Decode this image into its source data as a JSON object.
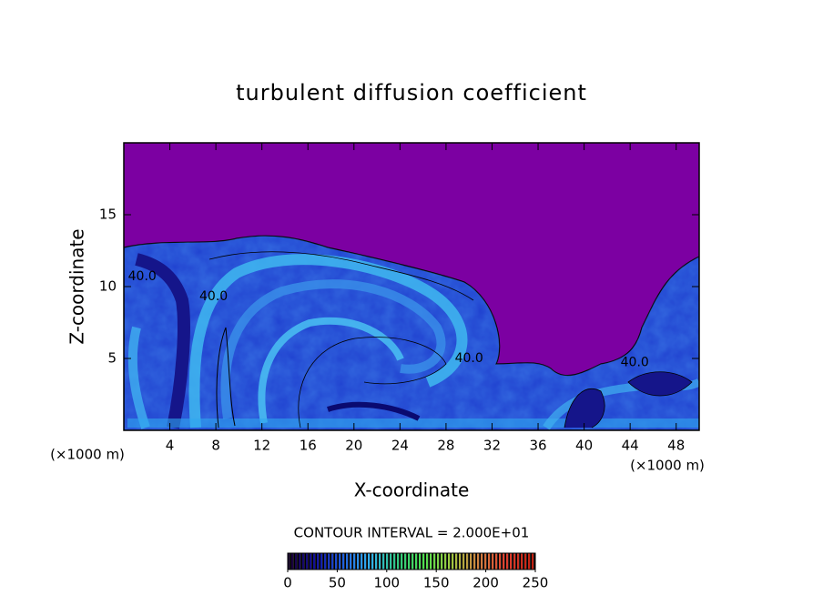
{
  "chart_data": {
    "type": "contour",
    "title": "turbulent diffusion coefficient",
    "xlabel": "X-coordinate",
    "ylabel": "Z-coordinate",
    "x_unit_label": "(×1000 m)",
    "y_unit_label": "(×1000 m)",
    "xlim": [
      0,
      50
    ],
    "xticks": [
      4,
      8,
      12,
      16,
      20,
      24,
      28,
      32,
      36,
      40,
      44,
      48
    ],
    "ylim": [
      0,
      20
    ],
    "yticks": [
      5,
      10,
      15
    ],
    "background_color": "#7c00a2",
    "contour_labels": {
      "values": [
        40,
        40,
        40,
        40
      ],
      "value_labels": [
        "40.0",
        "40.0",
        "40.0",
        "40.0"
      ],
      "x": [
        1.6,
        7.8,
        30.0,
        44.4
      ],
      "y": [
        10.7,
        9.3,
        5.0,
        4.7
      ]
    },
    "contour_interval": "CONTOUR INTERVAL = 2.000E+01",
    "colorbar": {
      "lim": [
        0,
        250
      ],
      "ticks": [
        0,
        50,
        100,
        150,
        200,
        250
      ],
      "colors": [
        "#1a0030",
        "#1010a0",
        "#2060e0",
        "#30b0f0",
        "#30c880",
        "#50e050",
        "#a0c840",
        "#d08040",
        "#e04030",
        "#c02010"
      ]
    }
  }
}
